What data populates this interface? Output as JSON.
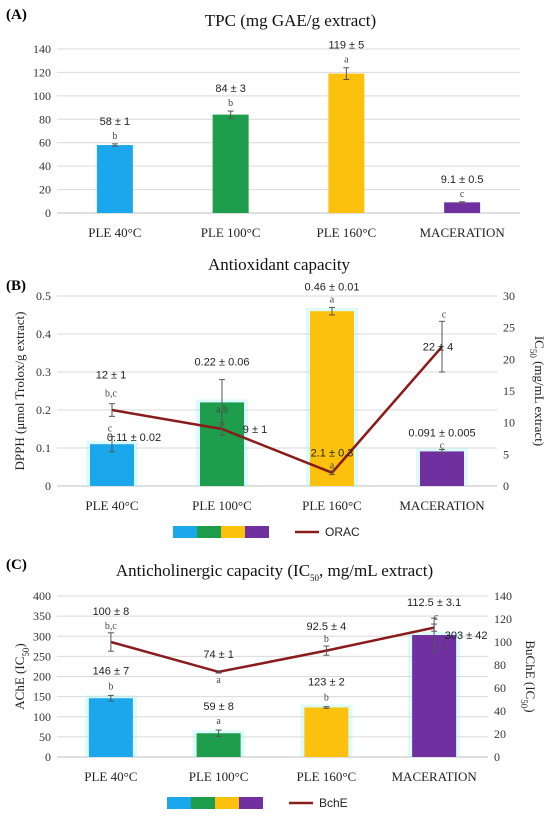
{
  "colors": {
    "c1": "#1aa7ec",
    "c2": "#1e9e4c",
    "c3": "#fbc10d",
    "c4": "#7030a0",
    "line": "#8b1a1a",
    "grid": "#d9d9d9",
    "axis": "#bfbfbf",
    "label_blue": "#1f3b73",
    "label_green": "#4a8a2a",
    "label_orange": "#e07b00",
    "label_purple": "#7030a0",
    "label_red": "#a00000",
    "glow": "#9df0f5"
  },
  "chart_data": [
    {
      "panel_label": "(A)",
      "type": "bar",
      "title": "TPC (mg GAE/g extract)",
      "categories": [
        "PLE 40°C",
        "PLE 100°C",
        "PLE 160°C",
        "MACERATION"
      ],
      "series": [
        {
          "values": [
            58,
            84,
            119,
            9.1
          ],
          "errors": [
            1,
            3,
            5,
            0.5
          ],
          "value_labels": [
            "58 ± 1",
            "84 ± 3",
            "119 ± 5",
            "9.1 ± 0.5"
          ],
          "letters": [
            "b",
            "b",
            "a",
            "c"
          ]
        }
      ],
      "ylim": [
        0,
        140
      ],
      "yticks": [
        "0",
        "20",
        "40",
        "60",
        "80",
        "100",
        "120",
        "140"
      ],
      "grid": true
    },
    {
      "panel_label": "(B)",
      "type": "bar",
      "title": "Antioxidant capacity",
      "categories": [
        "PLE 40°C",
        "PLE 100°C",
        "PLE 160°C",
        "MACERATION"
      ],
      "ylabel": "DPPH (μmol Trolox/g extract)",
      "y2label_main": "IC",
      "y2label_sub": "50",
      "y2label_rest": " (mg/mL extract)",
      "ylim": [
        0,
        0.5
      ],
      "yticks": [
        "0",
        "0.1",
        "0.2",
        "0.3",
        "0.4",
        "0.5"
      ],
      "y2lim": [
        0,
        30
      ],
      "y2ticks": [
        "0",
        "5",
        "10",
        "15",
        "20",
        "25",
        "30"
      ],
      "grid": true,
      "series": [
        {
          "axis": "left",
          "type": "bar",
          "values": [
            0.11,
            0.22,
            0.46,
            0.091
          ],
          "errors": [
            0.02,
            0.06,
            0.01,
            0.005
          ],
          "value_labels": [
            "0.11 ± 0.02",
            "0.22 ± 0.06",
            "0.46 ± 0.01",
            "0.091 ± 0.005"
          ],
          "letters": [
            "c",
            "a,b",
            "a",
            "c"
          ]
        },
        {
          "axis": "right",
          "type": "line",
          "name": "ORAC",
          "values": [
            12,
            9,
            2.1,
            22
          ],
          "errors": [
            1,
            1,
            0.3,
            4
          ],
          "value_labels": [
            "12 ± 1",
            "9 ± 1",
            "2.1 ± 0.3",
            "22 ± 4"
          ],
          "letters": [
            "b,c",
            "",
            "a",
            "c"
          ]
        }
      ],
      "legend": [
        "ORAC"
      ],
      "legend_position": "bottom"
    },
    {
      "panel_label": "(C)",
      "type": "bar",
      "title_main": "Anticholinergic capacity (IC",
      "title_sub": "50",
      "title_rest": ", mg/mL extract)",
      "categories": [
        "PLE 40°C",
        "PLE 100°C",
        "PLE 160°C",
        "MACERATION"
      ],
      "ylabel_main": "AChE (IC",
      "ylabel_sub": "50",
      "ylabel_rest": ")",
      "y2label_main": "BuChE (IC",
      "y2label_sub": "50",
      "y2label_rest": ")",
      "ylim": [
        0,
        400
      ],
      "yticks": [
        "0",
        "50",
        "100",
        "150",
        "200",
        "250",
        "300",
        "350",
        "400"
      ],
      "y2lim": [
        0,
        140
      ],
      "y2ticks": [
        "0",
        "20",
        "40",
        "60",
        "80",
        "100",
        "120",
        "140"
      ],
      "grid": true,
      "series": [
        {
          "axis": "left",
          "type": "bar",
          "values": [
            146,
            59,
            123,
            303
          ],
          "errors": [
            7,
            8,
            2,
            42
          ],
          "value_labels": [
            "146 ± 7",
            "59 ± 8",
            "123 ± 2",
            "303 ± 42"
          ],
          "letters": [
            "b",
            "a",
            "b",
            "c"
          ]
        },
        {
          "axis": "right",
          "type": "line",
          "name": "BchE",
          "values": [
            100,
            74,
            92.5,
            112.5
          ],
          "errors": [
            8,
            1,
            4,
            3.1
          ],
          "value_labels": [
            "100 ± 8",
            "74 ± 1",
            "92.5 ± 4",
            "112.5 ± 3.1"
          ],
          "letters": [
            "b,c",
            "a",
            "b",
            "c"
          ]
        }
      ],
      "legend": [
        "BchE"
      ],
      "legend_position": "bottom"
    }
  ]
}
